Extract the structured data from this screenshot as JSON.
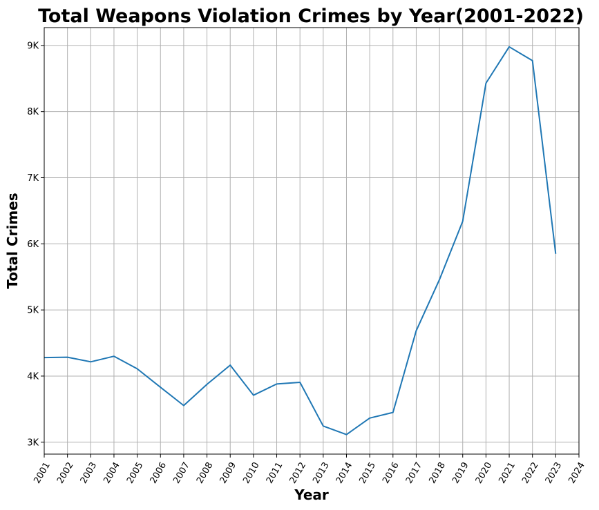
{
  "chart_data": {
    "type": "line",
    "title": "Total Weapons Violation Crimes by Year(2001-2022)",
    "xlabel": "Year",
    "ylabel": "Total Crimes",
    "xlim": [
      2001,
      2024
    ],
    "ylim": [
      2820,
      9270
    ],
    "grid": true,
    "x_ticks": [
      "2001",
      "2002",
      "2003",
      "2004",
      "2005",
      "2006",
      "2007",
      "2008",
      "2009",
      "2010",
      "2011",
      "2012",
      "2013",
      "2014",
      "2015",
      "2016",
      "2017",
      "2018",
      "2019",
      "2020",
      "2021",
      "2022",
      "2023",
      "2024"
    ],
    "y_ticks": [
      {
        "value": 3000,
        "label": "3K"
      },
      {
        "value": 4000,
        "label": "4K"
      },
      {
        "value": 5000,
        "label": "5K"
      },
      {
        "value": 6000,
        "label": "6K"
      },
      {
        "value": 7000,
        "label": "7K"
      },
      {
        "value": 8000,
        "label": "8K"
      },
      {
        "value": 9000,
        "label": "9K"
      }
    ],
    "series": [
      {
        "color": "#1f77b4",
        "x": [
          2001,
          2002,
          2003,
          2004,
          2005,
          2006,
          2007,
          2008,
          2009,
          2010,
          2011,
          2012,
          2013,
          2014,
          2015,
          2016,
          2017,
          2018,
          2019,
          2020,
          2021,
          2022,
          2023
        ],
        "values": [
          4280,
          4285,
          4215,
          4300,
          4110,
          3830,
          3555,
          3875,
          4165,
          3710,
          3880,
          3905,
          3245,
          3115,
          3365,
          3450,
          4685,
          5460,
          6340,
          8430,
          8980,
          8770,
          5850
        ]
      }
    ]
  }
}
